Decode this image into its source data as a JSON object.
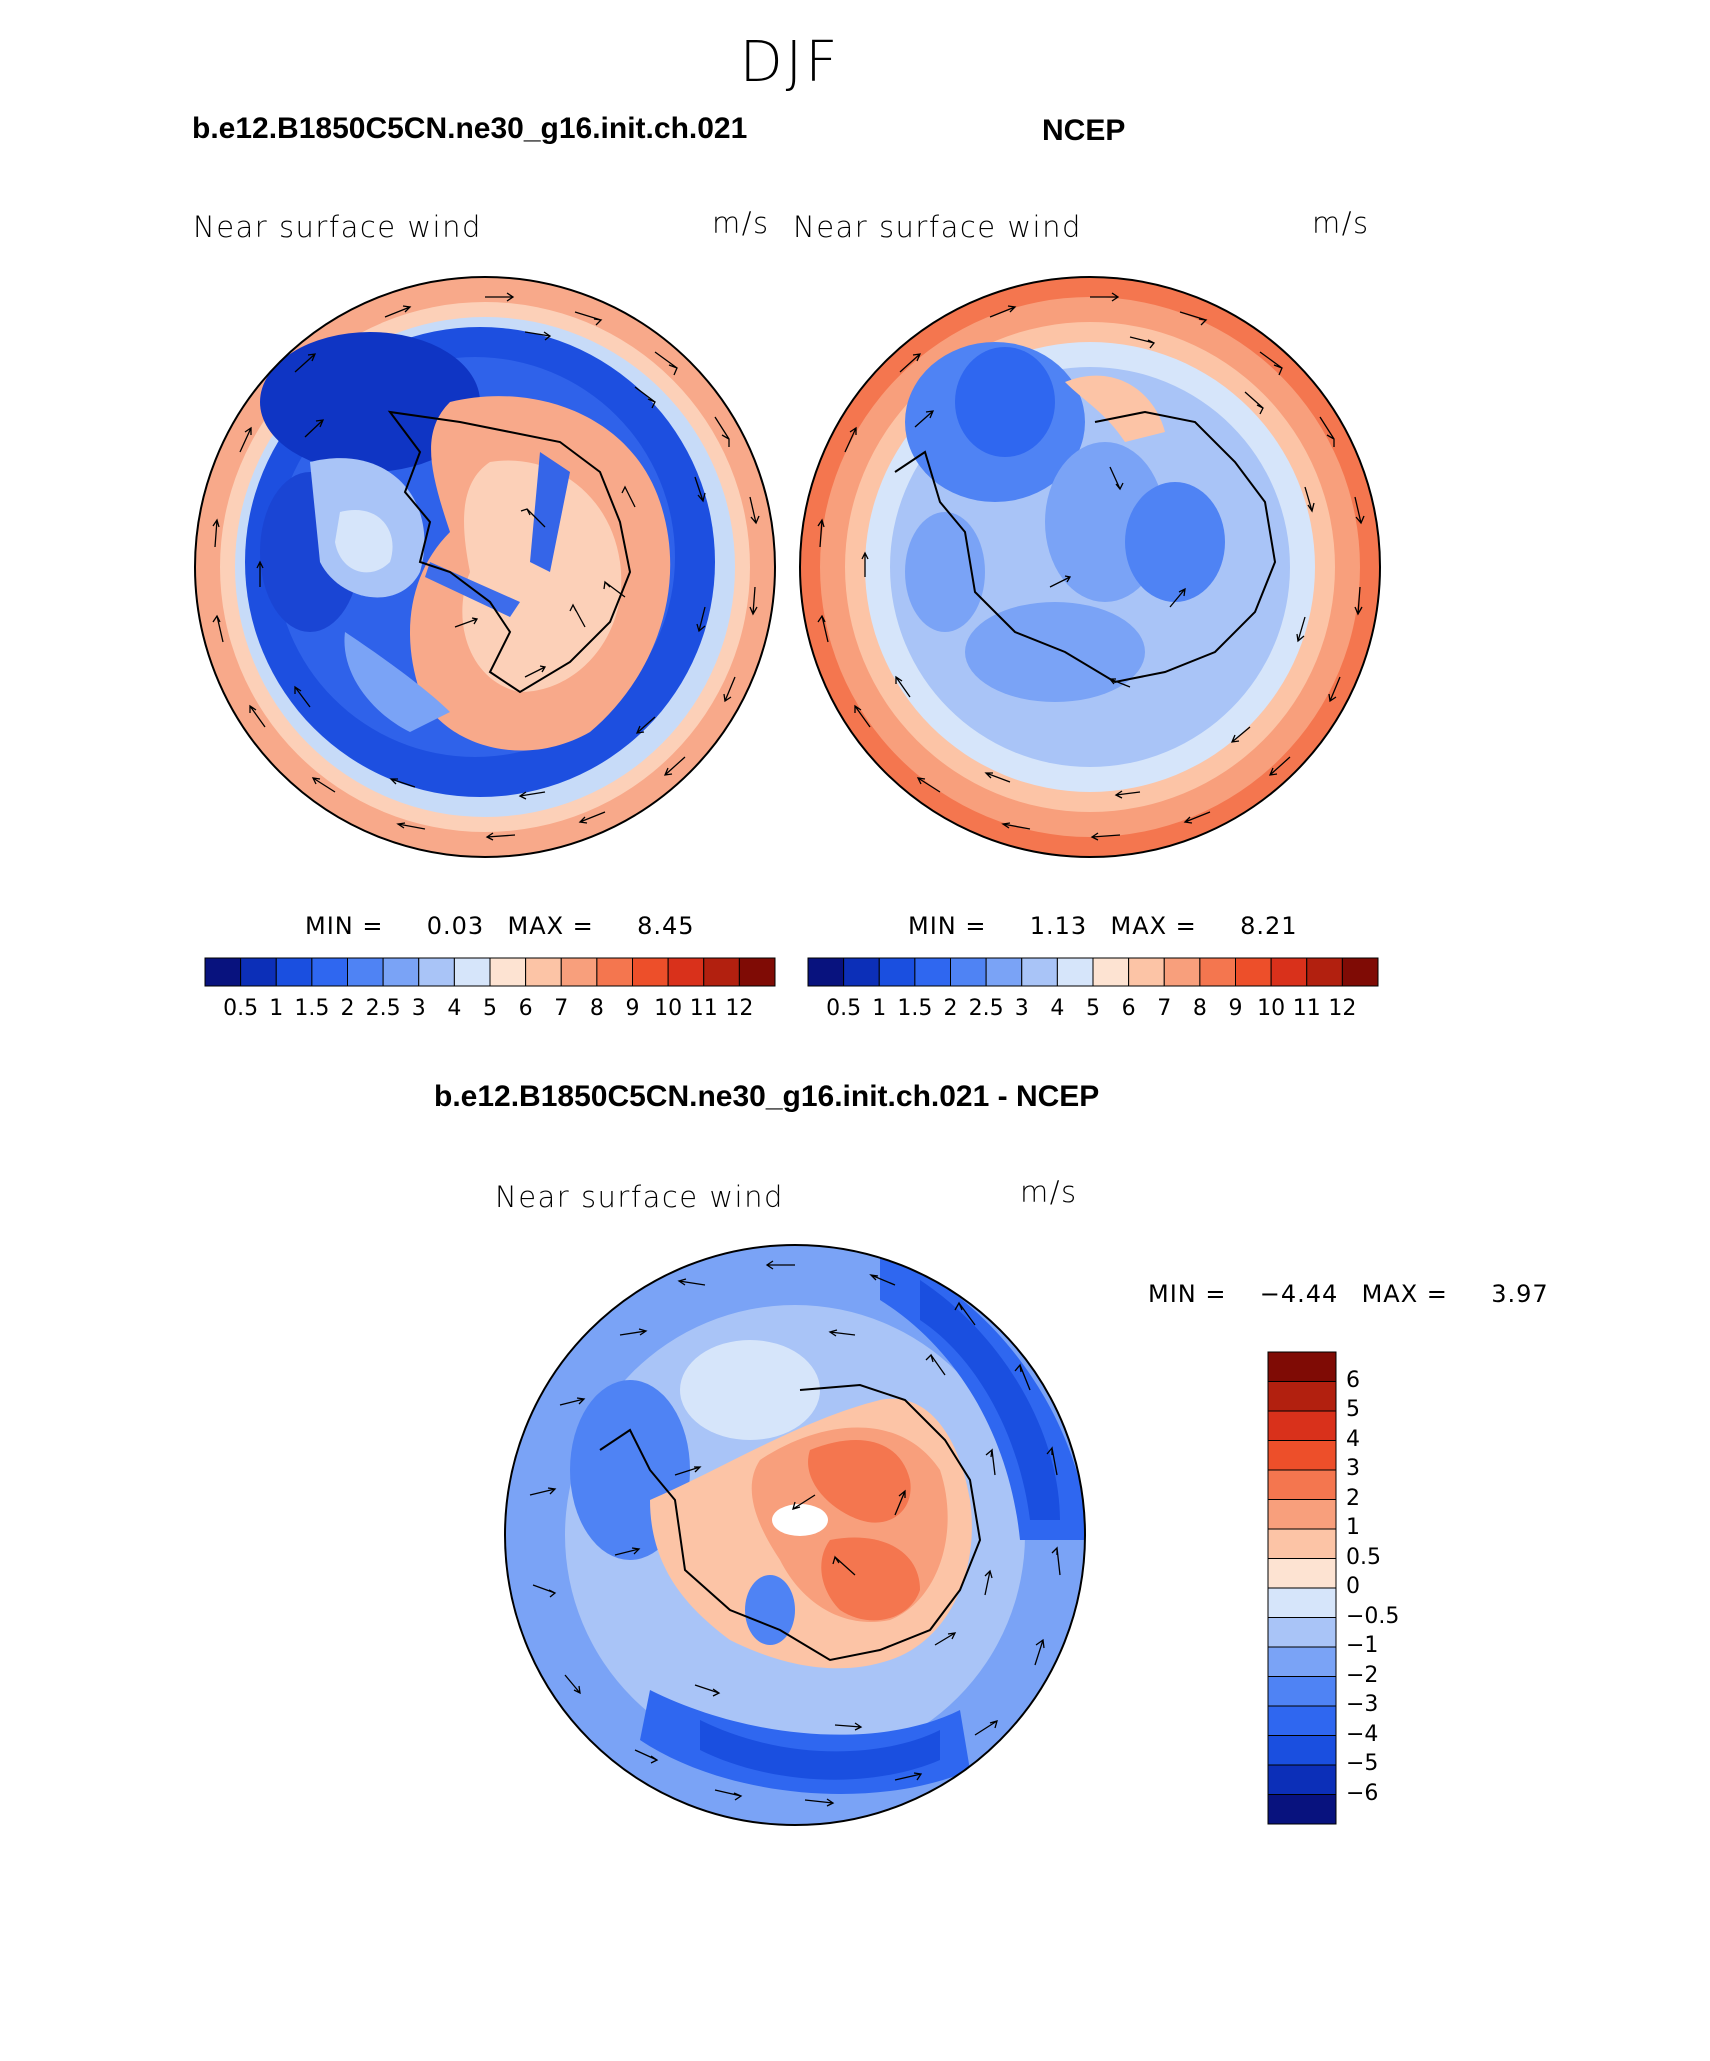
{
  "figure": {
    "title": "DJF"
  },
  "panels": [
    {
      "title": "b.e12.B1850C5CN.ne30_g16.init.ch.021",
      "variable": "Near surface wind",
      "units": "m/s",
      "min_label": "MIN =",
      "min_value": "0.03",
      "max_label": "MAX =",
      "max_value": "8.45"
    },
    {
      "title": "NCEP",
      "variable": "Near surface wind",
      "units": "m/s",
      "min_label": "MIN =",
      "min_value": "1.13",
      "max_label": "MAX =",
      "max_value": "8.21"
    },
    {
      "title": "b.e12.B1850C5CN.ne30_g16.init.ch.021 - NCEP",
      "variable": "Near surface wind",
      "units": "m/s",
      "min_label": "MIN =",
      "min_value": "−4.44",
      "max_label": "MAX =",
      "max_value": "3.97"
    }
  ],
  "colorbar_abs": {
    "labels": [
      "0.5",
      "1",
      "1.5",
      "2",
      "2.5",
      "3",
      "4",
      "5",
      "6",
      "7",
      "8",
      "9",
      "10",
      "11",
      "12"
    ],
    "colors": [
      "#08127e",
      "#0c2fb8",
      "#1a4fe0",
      "#2f67f0",
      "#4f83f4",
      "#7aa3f6",
      "#a9c4f7",
      "#d6e5fa",
      "#fde3d2",
      "#fcc4a6",
      "#f89f7c",
      "#f4764f",
      "#ed4f2a",
      "#d9311b",
      "#b2200f",
      "#7f0b05"
    ]
  },
  "colorbar_diff": {
    "labels": [
      "6",
      "5",
      "4",
      "3",
      "2",
      "1",
      "0.5",
      "0",
      "−0.5",
      "−1",
      "−2",
      "−3",
      "−4",
      "−5",
      "−6"
    ],
    "colors": [
      "#7f0b05",
      "#b2200f",
      "#d9311b",
      "#ed4f2a",
      "#f4764f",
      "#f89f7c",
      "#fcc4a6",
      "#fde3d2",
      "#d6e5fa",
      "#a9c4f7",
      "#7aa3f6",
      "#4f83f4",
      "#2f67f0",
      "#1a4fe0",
      "#0c2fb8",
      "#08127e"
    ]
  }
}
